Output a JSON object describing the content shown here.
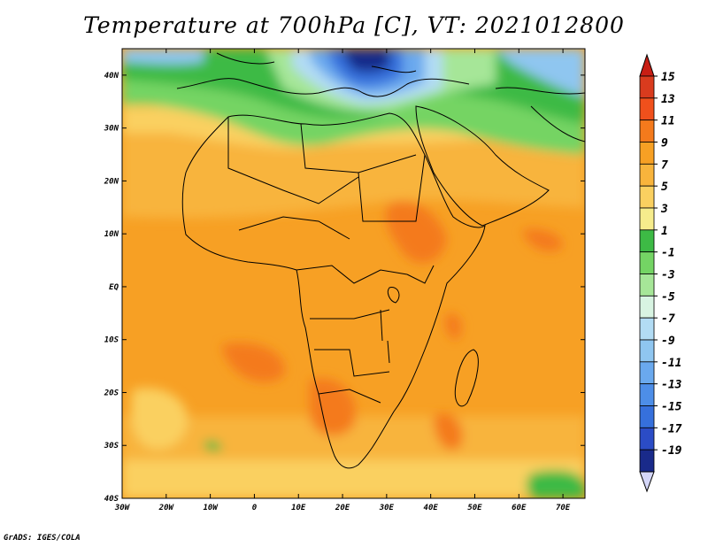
{
  "title": "Temperature at 700hPa [C], VT: 2021012800",
  "credit": "GrADS: IGES/COLA",
  "map": {
    "variable": "Temperature at 700hPa",
    "units": "C",
    "valid_time": "2021012800",
    "lon_range": [
      -30,
      75
    ],
    "lat_range": [
      -40,
      45
    ],
    "lon_ticks": [
      {
        "value": -30,
        "label": "30W"
      },
      {
        "value": -20,
        "label": "20W"
      },
      {
        "value": -10,
        "label": "10W"
      },
      {
        "value": 0,
        "label": "0"
      },
      {
        "value": 10,
        "label": "10E"
      },
      {
        "value": 20,
        "label": "20E"
      },
      {
        "value": 30,
        "label": "30E"
      },
      {
        "value": 40,
        "label": "40E"
      },
      {
        "value": 50,
        "label": "50E"
      },
      {
        "value": 60,
        "label": "60E"
      },
      {
        "value": 70,
        "label": "70E"
      }
    ],
    "lat_ticks": [
      {
        "value": 40,
        "label": "40N"
      },
      {
        "value": 30,
        "label": "30N"
      },
      {
        "value": 20,
        "label": "20N"
      },
      {
        "value": 10,
        "label": "10N"
      },
      {
        "value": 0,
        "label": "EQ"
      },
      {
        "value": -10,
        "label": "10S"
      },
      {
        "value": -20,
        "label": "20S"
      },
      {
        "value": -30,
        "label": "30S"
      },
      {
        "value": -40,
        "label": "40S"
      }
    ]
  },
  "colorbar": {
    "levels": [
      {
        "label": "15",
        "color": "#d93b1e"
      },
      {
        "label": "13",
        "color": "#f0501c"
      },
      {
        "label": "11",
        "color": "#f47a1c"
      },
      {
        "label": "9",
        "color": "#f7a024"
      },
      {
        "label": "7",
        "color": "#f8b43c"
      },
      {
        "label": "5",
        "color": "#fad060"
      },
      {
        "label": "3",
        "color": "#f6ec8c"
      },
      {
        "label": "1",
        "color": "#3dba45"
      },
      {
        "label": "-1",
        "color": "#74d464"
      },
      {
        "label": "-3",
        "color": "#a6e698"
      },
      {
        "label": "-5",
        "color": "#d8f4e2"
      },
      {
        "label": "-7",
        "color": "#b2dcf4"
      },
      {
        "label": "-9",
        "color": "#8fc6f0"
      },
      {
        "label": "-11",
        "color": "#6aa9ee"
      },
      {
        "label": "-13",
        "color": "#4d8ee8"
      },
      {
        "label": "-15",
        "color": "#3670dc"
      },
      {
        "label": "-17",
        "color": "#2b4cc6"
      },
      {
        "label": "-19",
        "color": "#192a8a"
      }
    ],
    "top_triangle_color": "#c81e14",
    "bottom_triangle_color": "#d4d6f8"
  }
}
